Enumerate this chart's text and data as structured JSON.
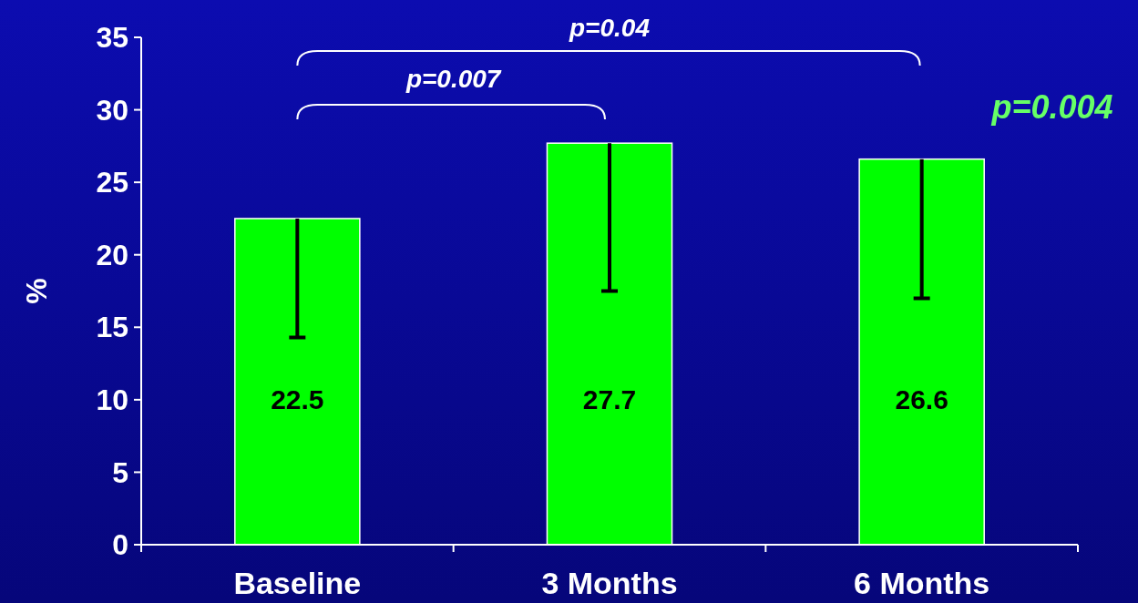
{
  "chart_data": {
    "type": "bar",
    "ylabel": "%",
    "categories": [
      "Baseline",
      "3 Months",
      "6 Months"
    ],
    "values": [
      22.5,
      27.7,
      26.6
    ],
    "color": "#00ff00",
    "errors": [
      [
        14.3,
        22.5
      ],
      [
        17.5,
        27.7
      ],
      [
        17.0,
        26.6
      ]
    ],
    "ylim": [
      0,
      35
    ],
    "yticks": [
      0,
      5,
      10,
      15,
      20,
      25,
      30,
      35
    ],
    "grid": false,
    "data_labels": true,
    "annotations": [
      "p=0.007",
      "p=0.04",
      "p=0.004"
    ]
  }
}
